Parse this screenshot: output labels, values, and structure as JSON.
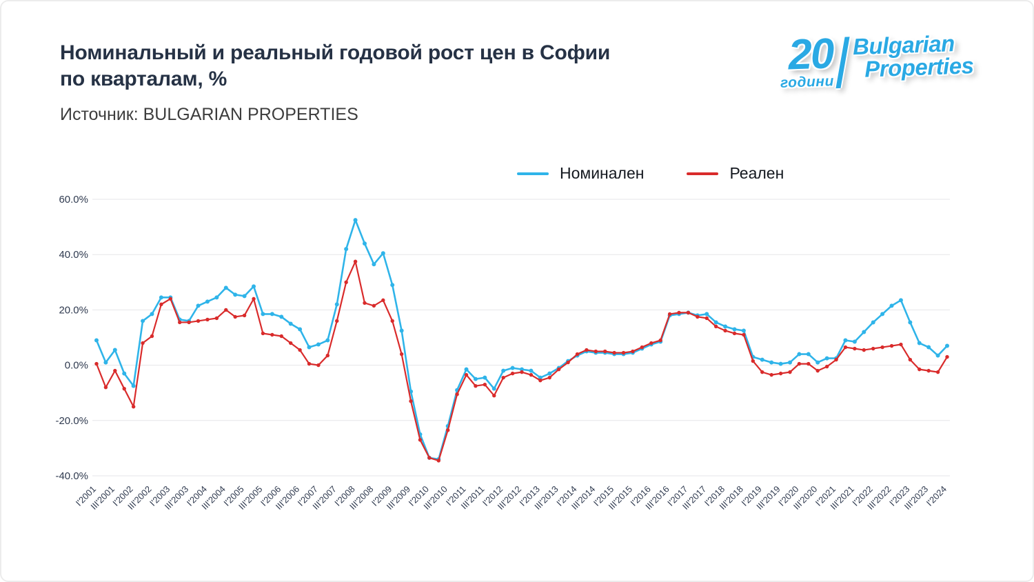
{
  "header": {
    "title_line1": "Номинальный и реальный годовой рост цен в Софии",
    "title_line2": "по кварталам, %",
    "source": "Источник: BULGARIAN PROPERTIES"
  },
  "logo": {
    "years_number": "20",
    "years_word": "години",
    "brand_line1": "Bulgarian",
    "brand_line2": "Properties",
    "color": "#2aa9e4"
  },
  "chart_data": {
    "type": "line",
    "title": "Номинальный и реальный годовой рост цен в Софии по кварталам, %",
    "xlabel": "",
    "ylabel": "",
    "ylim": [
      -40,
      60
    ],
    "yticks": [
      60,
      40,
      20,
      0,
      -20,
      -40
    ],
    "ytick_format": "percent_1dp",
    "grid": "horizontal",
    "legend_position": "top-center",
    "x_count": 93,
    "tick_every": 2,
    "x_tick_labels": [
      "I'2001",
      "III'2001",
      "I'2002",
      "III'2002",
      "I'2003",
      "III'2003",
      "I'2004",
      "III'2004",
      "I'2005",
      "III'2005",
      "I'2006",
      "III'2006",
      "I'2007",
      "III'2007",
      "I'2008",
      "III'2008",
      "I'2009",
      "III'2009",
      "I'2010",
      "III'2010",
      "I'2011",
      "III'2011",
      "I'2012",
      "III'2012",
      "I'2013",
      "III'2013",
      "I'2014",
      "III'2014",
      "I'2015",
      "III'2015",
      "I'2016",
      "III'2016",
      "I'2017",
      "III'2017",
      "I'2018",
      "III'2018",
      "I'2019",
      "III'2019",
      "I'2020",
      "III'2020",
      "I'2021",
      "III'2021",
      "I'2022",
      "III'2022",
      "I'2023",
      "III'2023",
      "I'2024"
    ],
    "series": [
      {
        "name": "Номинален",
        "key": "nominal",
        "color": "#2fb4e9",
        "width": 2.6,
        "dot": 3,
        "values": [
          9,
          1,
          5.5,
          -3,
          -7.5,
          16,
          18.5,
          24.5,
          24.5,
          16.5,
          16,
          21.5,
          23,
          24.5,
          28,
          25.5,
          25,
          28.5,
          18.5,
          18.5,
          17.5,
          15,
          13,
          6.5,
          7.5,
          9,
          22,
          42,
          52.5,
          44,
          36.5,
          40.5,
          29,
          12.5,
          -9.5,
          -25,
          -33.5,
          -34,
          -22,
          -9,
          -1.5,
          -5,
          -4.5,
          -8.5,
          -2,
          -1,
          -1.5,
          -2,
          -4.5,
          -3,
          -1,
          1.5,
          3.5,
          5,
          4.5,
          4.5,
          4,
          4,
          4.5,
          6,
          7.5,
          8.5,
          18,
          18.5,
          19,
          18,
          18.5,
          15.5,
          14,
          13,
          12.5,
          3,
          2,
          1,
          0.5,
          1,
          4,
          4,
          1,
          2.5,
          2.5,
          9,
          8.5,
          12,
          15.5,
          18.5,
          21.5,
          23.5,
          15.5,
          8,
          6.5,
          3.5,
          7
        ]
      },
      {
        "name": "Реален",
        "key": "real",
        "color": "#d92b2b",
        "width": 2.2,
        "dot": 2.7,
        "values": [
          0.5,
          -8,
          -2,
          -8.5,
          -15,
          8,
          10.5,
          22,
          24,
          15.5,
          15.5,
          16,
          16.5,
          17,
          20,
          17.5,
          18,
          24,
          11.5,
          11,
          10.5,
          8,
          5.5,
          0.5,
          0,
          3.5,
          16,
          30,
          37.5,
          22.5,
          21.5,
          23.5,
          16,
          4,
          -13,
          -27,
          -33.5,
          -34.5,
          -23.5,
          -10.5,
          -3.5,
          -7.5,
          -7,
          -11,
          -4.5,
          -3,
          -2.5,
          -3.5,
          -5.5,
          -4.5,
          -1.5,
          1,
          4,
          5.5,
          5,
          5,
          4.5,
          4.5,
          5,
          6.5,
          8,
          9,
          18.5,
          19,
          19,
          17.5,
          17,
          14,
          12.5,
          11.5,
          11,
          1.5,
          -2.5,
          -3.5,
          -3,
          -2.5,
          0.5,
          0.5,
          -2,
          -0.5,
          2,
          6.5,
          6,
          5.5,
          6,
          6.5,
          7,
          7.5,
          2,
          -1.5,
          -2,
          -2.5,
          3
        ]
      }
    ]
  }
}
